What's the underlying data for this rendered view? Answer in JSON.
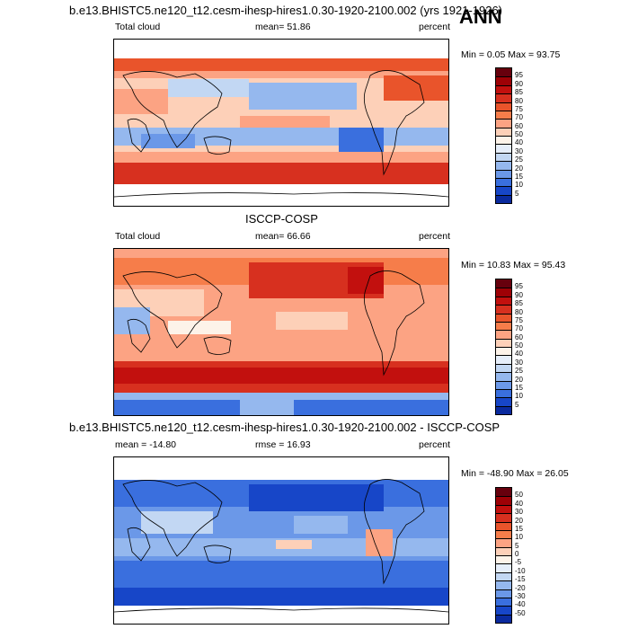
{
  "ann_label": "ANN",
  "panels": [
    {
      "id": "model",
      "header": "b.e13.BHISTC5.ne120_t12.cesm-ihesp-hires1.0.30-1920-2100.002 (yrs 1921-1926)",
      "left_label": "Total cloud",
      "mid_label": "mean=  51.86",
      "right_label": "percent",
      "minmax": "Min =   0.05 Max =  93.75",
      "colorbar_labels": [
        "95",
        "90",
        "85",
        "80",
        "75",
        "70",
        "60",
        "50",
        "40",
        "30",
        "25",
        "20",
        "15",
        "10",
        "5"
      ],
      "colors": [
        "#67000d",
        "#9e0106",
        "#c2100e",
        "#d7301f",
        "#e9542b",
        "#f67d4a",
        "#fca383",
        "#fdd0b8",
        "#fdf3e9",
        "#e6eefa",
        "#c2d7f3",
        "#95b8ee",
        "#6b98e8",
        "#3a6fde",
        "#1746c8",
        "#0a2a9e"
      ]
    },
    {
      "id": "obs",
      "header": "ISCCP-COSP",
      "left_label": "Total cloud",
      "mid_label": "mean=  66.66",
      "right_label": "percent",
      "minmax": "Min =  10.83 Max =  95.43",
      "colorbar_labels": [
        "95",
        "90",
        "85",
        "80",
        "75",
        "70",
        "60",
        "50",
        "40",
        "30",
        "25",
        "20",
        "15",
        "10",
        "5"
      ],
      "colors": [
        "#67000d",
        "#9e0106",
        "#c2100e",
        "#d7301f",
        "#e9542b",
        "#f67d4a",
        "#fca383",
        "#fdd0b8",
        "#fdf3e9",
        "#e6eefa",
        "#c2d7f3",
        "#95b8ee",
        "#6b98e8",
        "#3a6fde",
        "#1746c8",
        "#0a2a9e"
      ]
    },
    {
      "id": "diff",
      "header": "b.e13.BHISTC5.ne120_t12.cesm-ihesp-hires1.0.30-1920-2100.002 - ISCCP-COSP",
      "left_label": "mean = -14.80",
      "mid_label": "rmse =  16.93",
      "right_label": "percent",
      "minmax": "Min = -48.90 Max =  26.05",
      "colorbar_labels": [
        "50",
        "40",
        "30",
        "20",
        "15",
        "10",
        "5",
        "0",
        "-5",
        "-10",
        "-15",
        "-20",
        "-30",
        "-40",
        "-50"
      ],
      "colors": [
        "#67000d",
        "#9e0106",
        "#c2100e",
        "#d7301f",
        "#e9542b",
        "#f67d4a",
        "#fca383",
        "#fdd0b8",
        "#fdf3e9",
        "#e6eefa",
        "#c2d7f3",
        "#95b8ee",
        "#6b98e8",
        "#3a6fde",
        "#1746c8",
        "#0a2a9e"
      ]
    }
  ]
}
